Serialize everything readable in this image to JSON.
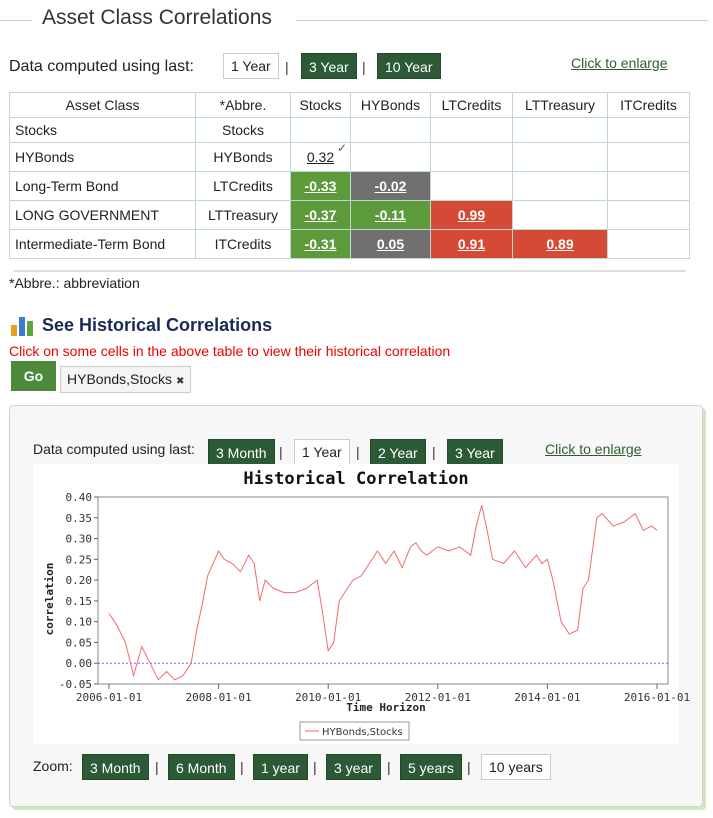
{
  "header": {
    "title": "Asset Class Correlations"
  },
  "period_selector": {
    "label": "Data computed using last:",
    "options": [
      "1 Year",
      "3 Year",
      "10 Year"
    ],
    "selected": "1 Year",
    "enlarge_link": "Click to enlarge"
  },
  "corr_table": {
    "headers": [
      "Asset Class",
      "*Abbre.",
      "Stocks",
      "HYBonds",
      "LTCredits",
      "LTTreasury",
      "ITCredits"
    ],
    "rows": [
      {
        "name": "Stocks",
        "abbr": "Stocks",
        "values": [
          "",
          "",
          "",
          "",
          ""
        ]
      },
      {
        "name": "HYBonds",
        "abbr": "HYBonds",
        "values": [
          "0.32",
          "",
          "",
          "",
          ""
        ]
      },
      {
        "name": "Long-Term Bond",
        "abbr": "LTCredits",
        "values": [
          "-0.33",
          "-0.02",
          "",
          "",
          ""
        ]
      },
      {
        "name": "LONG GOVERNMENT",
        "abbr": "LTTreasury",
        "values": [
          "-0.37",
          "-0.11",
          "0.99",
          "",
          ""
        ]
      },
      {
        "name": "Intermediate-Term Bond",
        "abbr": "ITCredits",
        "values": [
          "-0.31",
          "0.05",
          "0.91",
          "0.89",
          ""
        ]
      }
    ],
    "colors": {
      "positive_strong": "#d44a35",
      "negative": "#5c9a3c",
      "neutral": "#707070"
    }
  },
  "note": "*Abbre.: abbreviation",
  "historical": {
    "title": "See Historical Correlations",
    "instruction": "Click on some cells in the above table to view their historical correlation",
    "go_label": "Go",
    "selected_tag": "HYBonds,Stocks",
    "remove_icon": "✖",
    "chart_icon": "bar-chart-icon"
  },
  "panel": {
    "label": "Data computed using last:",
    "options": [
      "3 Month",
      "1 Year",
      "2 Year",
      "3 Year"
    ],
    "selected": "1 Year",
    "enlarge_link": "Click to enlarge",
    "zoom_label": "Zoom:",
    "zoom_options": [
      "3 Month",
      "6 Month",
      "1 year",
      "3 year",
      "5 years",
      "10 years"
    ],
    "zoom_selected": "10 years"
  },
  "chart_data": {
    "type": "line",
    "title": "Historical  Correlation",
    "xlabel": "Time Horizon",
    "ylabel": "correlation",
    "x_tick_labels": [
      "2006-01-01",
      "2008-01-01",
      "2010-01-01",
      "2012-01-01",
      "2014-01-01",
      "2016-01-01"
    ],
    "y_tick_labels": [
      "-0.05",
      "0.00",
      "0.05",
      "0.10",
      "0.15",
      "0.20",
      "0.25",
      "0.30",
      "0.35",
      "0.40"
    ],
    "ylim": [
      -0.05,
      0.4
    ],
    "xlim": [
      2005.8,
      2016.2
    ],
    "grid": true,
    "legend_position": "bottom",
    "series": [
      {
        "name": "HYBonds,Stocks",
        "color": "#f26b6b",
        "x": [
          2006.0,
          2006.15,
          2006.3,
          2006.45,
          2006.6,
          2006.75,
          2006.9,
          2007.05,
          2007.2,
          2007.35,
          2007.5,
          2007.6,
          2007.7,
          2007.8,
          2007.9,
          2008.0,
          2008.1,
          2008.25,
          2008.4,
          2008.55,
          2008.65,
          2008.75,
          2008.85,
          2009.0,
          2009.2,
          2009.4,
          2009.6,
          2009.8,
          2009.9,
          2010.0,
          2010.1,
          2010.2,
          2010.3,
          2010.45,
          2010.6,
          2010.75,
          2010.9,
          2011.05,
          2011.2,
          2011.35,
          2011.5,
          2011.6,
          2011.7,
          2011.8,
          2011.9,
          2012.0,
          2012.2,
          2012.4,
          2012.6,
          2012.7,
          2012.8,
          2012.9,
          2013.0,
          2013.2,
          2013.4,
          2013.6,
          2013.8,
          2013.9,
          2014.0,
          2014.1,
          2014.25,
          2014.4,
          2014.55,
          2014.65,
          2014.75,
          2014.9,
          2015.0,
          2015.2,
          2015.4,
          2015.6,
          2015.75,
          2015.9,
          2016.0
        ],
        "y": [
          0.12,
          0.09,
          0.05,
          -0.03,
          0.04,
          0.0,
          -0.04,
          -0.02,
          -0.04,
          -0.03,
          0.0,
          0.08,
          0.14,
          0.21,
          0.24,
          0.27,
          0.25,
          0.24,
          0.22,
          0.26,
          0.24,
          0.15,
          0.2,
          0.18,
          0.17,
          0.17,
          0.18,
          0.2,
          0.12,
          0.03,
          0.05,
          0.15,
          0.17,
          0.2,
          0.21,
          0.24,
          0.27,
          0.24,
          0.27,
          0.23,
          0.28,
          0.29,
          0.27,
          0.26,
          0.27,
          0.28,
          0.27,
          0.28,
          0.26,
          0.33,
          0.38,
          0.32,
          0.25,
          0.24,
          0.27,
          0.23,
          0.26,
          0.24,
          0.25,
          0.2,
          0.1,
          0.07,
          0.08,
          0.18,
          0.2,
          0.35,
          0.36,
          0.33,
          0.34,
          0.36,
          0.32,
          0.33,
          0.32
        ]
      }
    ]
  }
}
